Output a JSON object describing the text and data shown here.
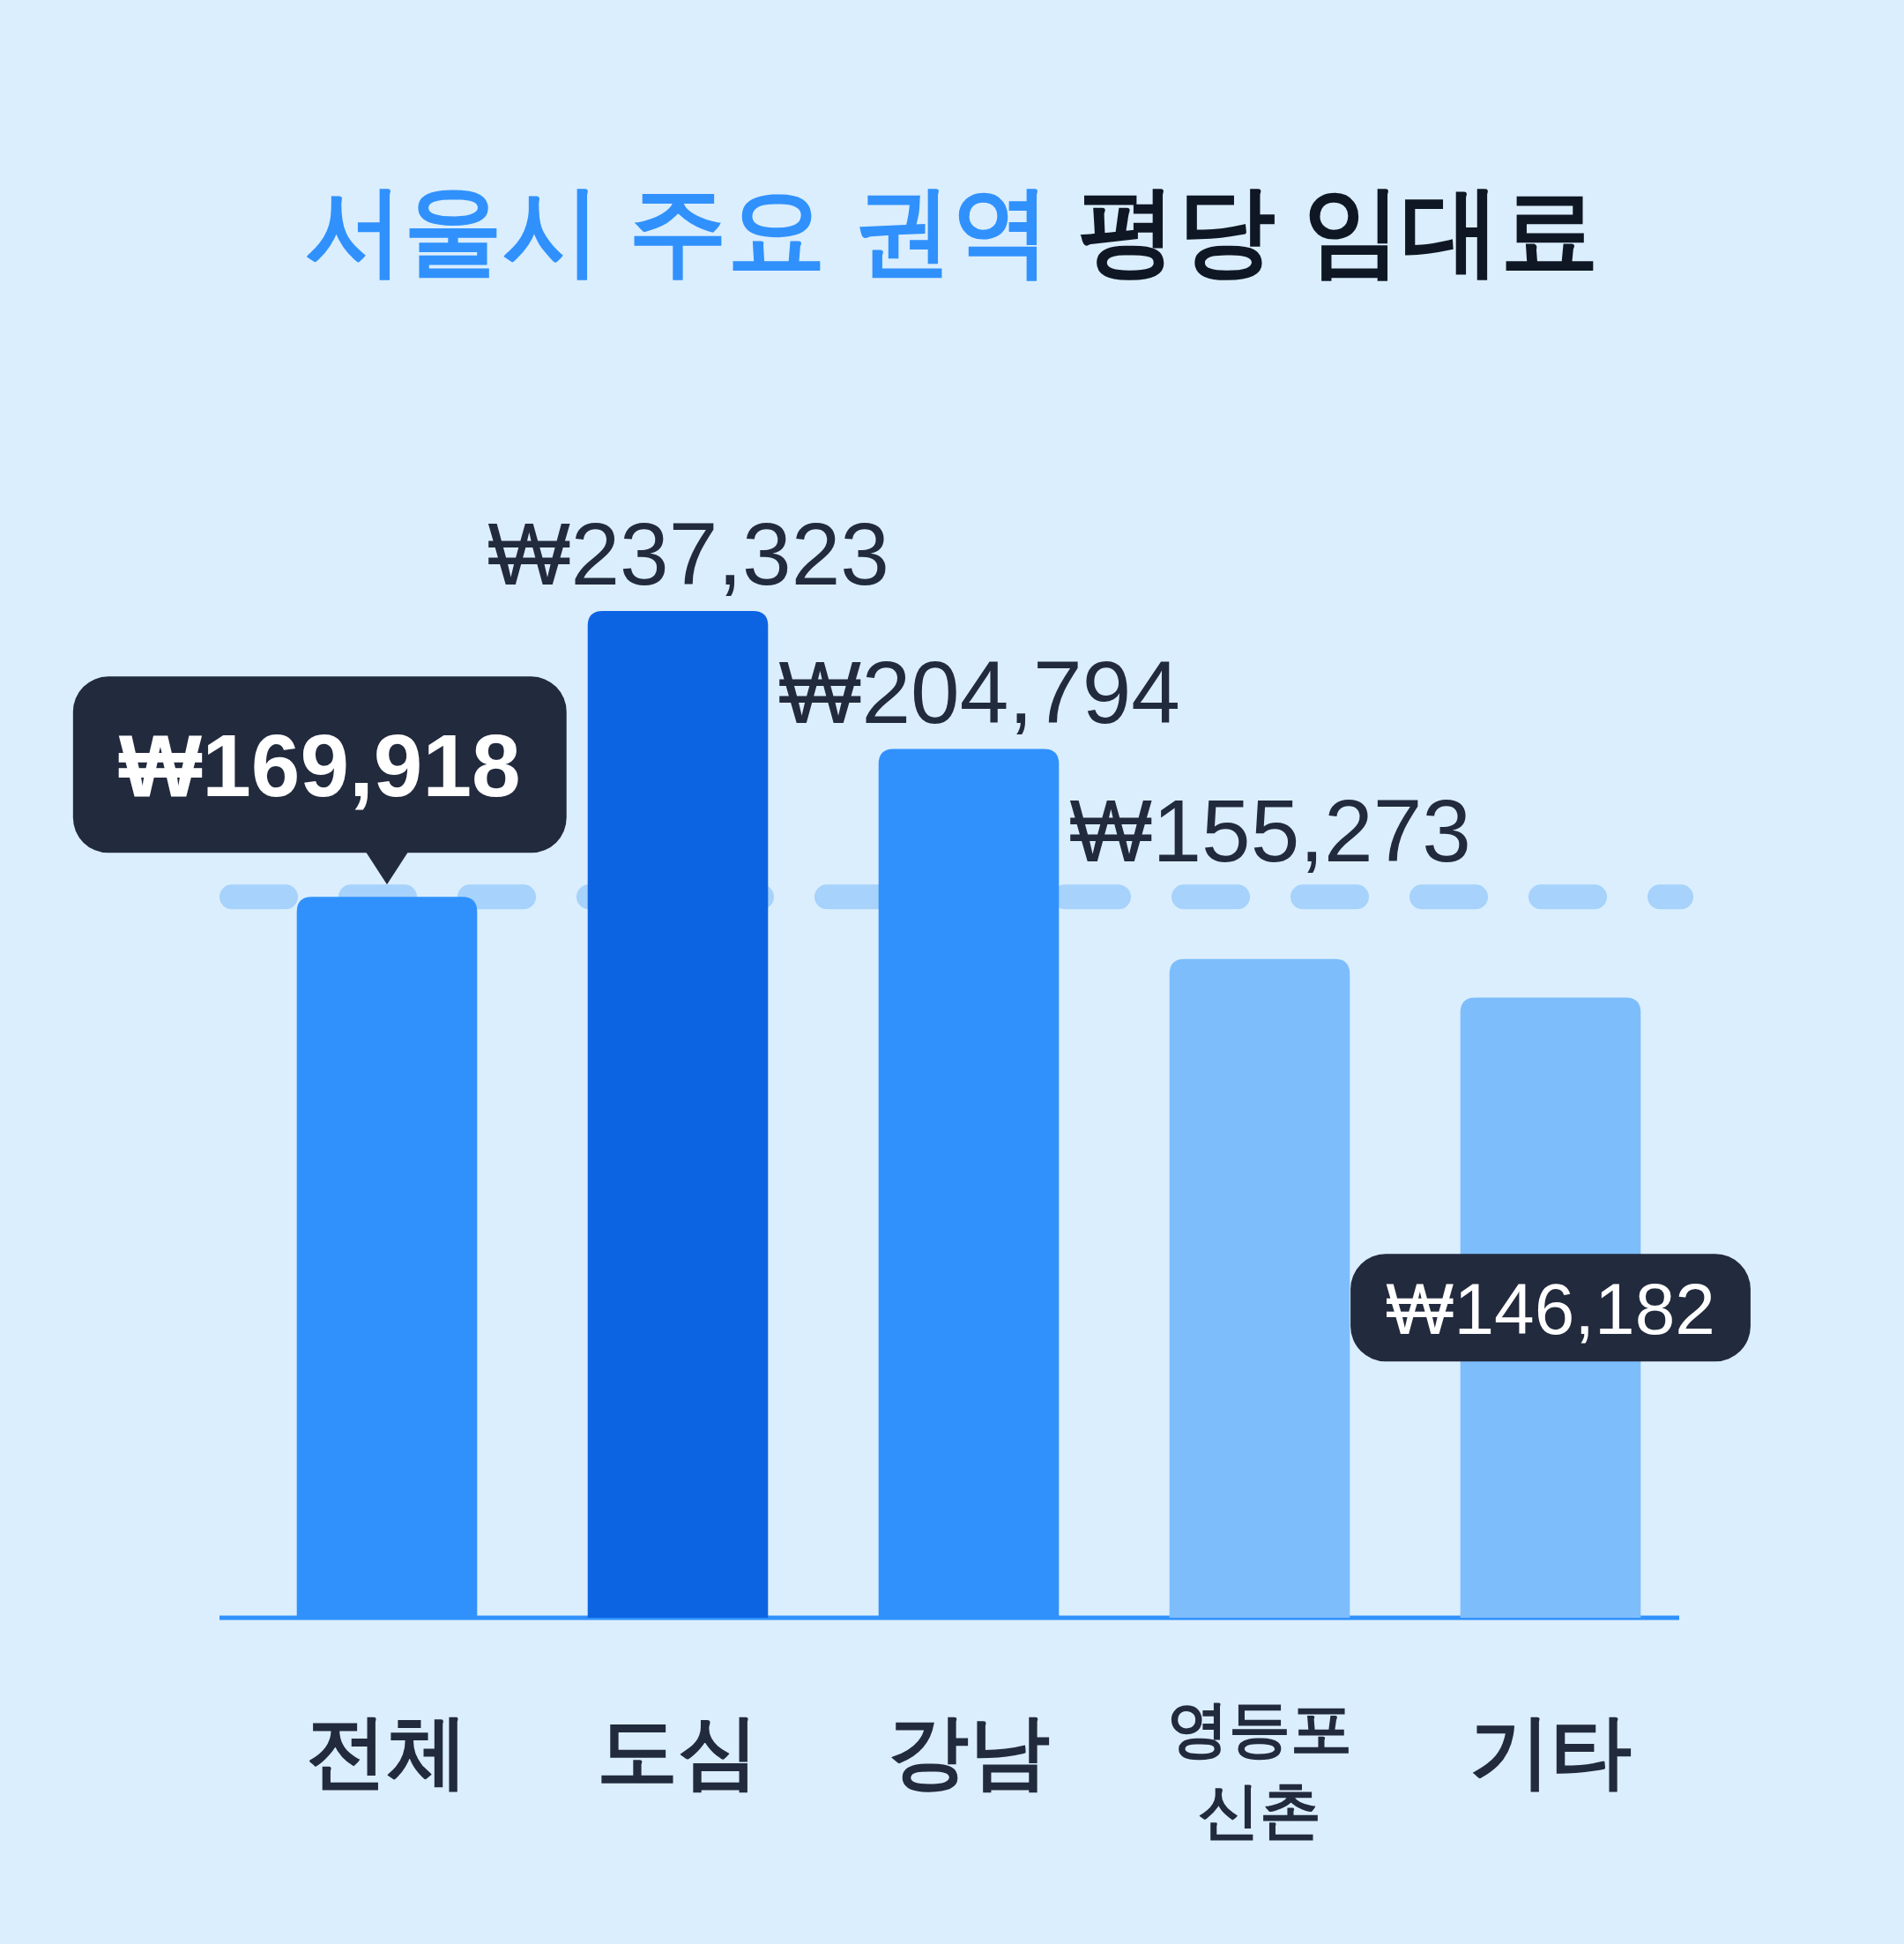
{
  "chart_data": {
    "type": "bar",
    "title": "서울시 주요 권역 평당 임대료",
    "categories": [
      "전체",
      "도심",
      "강남",
      "영등포\n신촌",
      "기타"
    ],
    "values": [
      169918,
      237323,
      204794,
      155273,
      146182
    ],
    "colors": [
      "#3091fd",
      "#0d64e3",
      "#3091fd",
      "#7dbdfc",
      "#7dbdfc"
    ],
    "value_labels": [
      "₩169,918",
      "₩237,323",
      "₩204,794",
      "₩155,273",
      "₩146,182"
    ],
    "ref_lines": [
      {
        "axis": "y",
        "value": 169918,
        "color": "#a6d2fb",
        "line_style": "dashed"
      }
    ]
  }
}
